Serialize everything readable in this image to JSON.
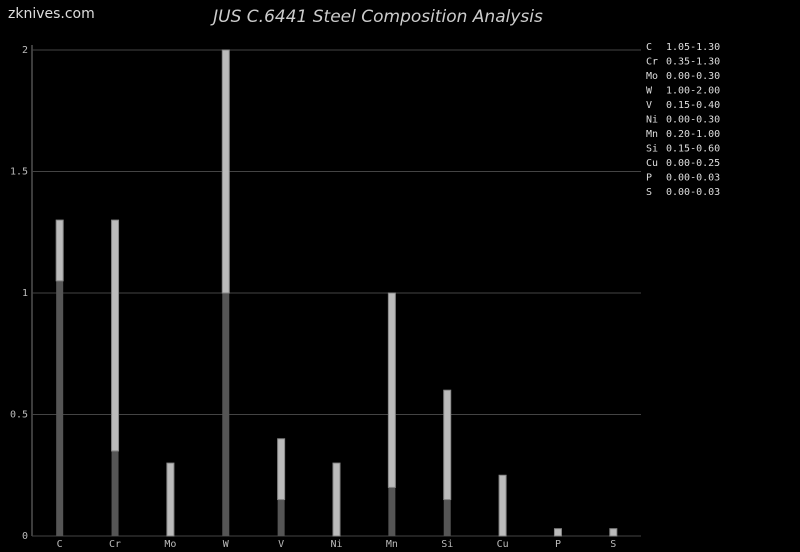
{
  "chart_data": {
    "type": "range_bar",
    "title": "JUS C.6441 Steel Composition Analysis",
    "watermark": "zknives.com",
    "categories": [
      "C",
      "Cr",
      "Mo",
      "W",
      "V",
      "Ni",
      "Mn",
      "Si",
      "Cu",
      "P",
      "S"
    ],
    "min_values": [
      1.05,
      0.35,
      0,
      1.0,
      0.15,
      0,
      0.2,
      0.15,
      0,
      0,
      0
    ],
    "max_values": [
      1.3,
      1.3,
      0.3,
      2.0,
      0.4,
      0.3,
      1.0,
      0.6,
      0.25,
      0.03,
      0.03
    ],
    "value_labels": [
      "1.05-1.30",
      "0.35-1.30",
      "0.00-0.30",
      "1.00-2.00",
      "0.15-0.40",
      "0.00-0.30",
      "0.20-1.00",
      "0.15-0.60",
      "0.00-0.25",
      "0.00-0.03",
      "0.00-0.03"
    ],
    "min_color": "#555555",
    "max_color": "#bbbbbb",
    "ylim": [
      0,
      2
    ],
    "yticks": [
      0,
      0.5,
      1,
      1.5,
      2
    ],
    "grid": true
  }
}
